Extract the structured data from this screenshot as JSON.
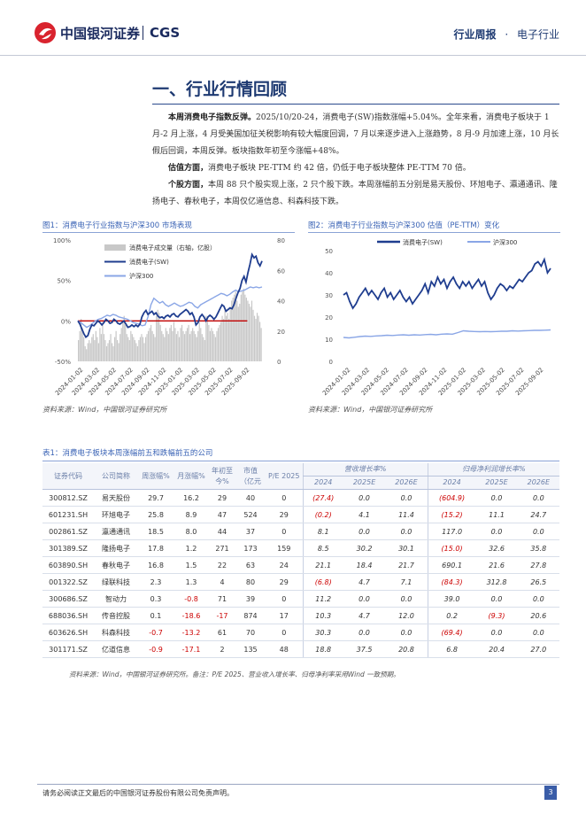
{
  "header": {
    "brand": "中国银河证券",
    "brand_suffix": "CGS",
    "report_type": "行业周报",
    "dot": "·",
    "industry": "电子行业"
  },
  "section": {
    "title": "一、行业行情回顾"
  },
  "paragraphs": [
    {
      "lead": "本周消费电子指数反弹。",
      "text": "2025/10/20-24，消费电子(SW)指数涨幅+5.04%。全年来看，消费电子板块于 1 月-2 月上涨，4 月受美国加征关税影响有较大幅度回调，7 月以来逐步进入上涨趋势，8 月-9 月加速上涨，10 月长假后回调，本周反弹。板块指数年初至今涨幅+48%。"
    },
    {
      "lead": "估值方面，",
      "text": "消费电子板块 PE-TTM 约 42 倍，仍低于电子板块整体 PE-TTM 70 倍。"
    },
    {
      "lead": "个股方面，",
      "text": "本周 88 只个股实现上涨，2 只个股下跌。本周涨幅前五分别是易天股份、环旭电子、瀛通通讯、隆扬电子、春秋电子，本周仅亿道信息、科森科技下跌。"
    }
  ],
  "figure1": {
    "caption": "图1：消费电子行业指数与沪深300 市场表现",
    "source": "资料来源：Wind，中国银河证券研究所"
  },
  "figure2": {
    "caption": "图2：消费电子行业指数与沪深300 估值（PE-TTM）变化",
    "source": "资料来源：Wind，中国银河证券研究所"
  },
  "chart_data": [
    {
      "type": "line",
      "title": "消费电子行业指数与沪深300 市场表现",
      "x_ticks": [
        "2024-01-02",
        "2024-03-02",
        "2024-05-02",
        "2024-07-02",
        "2024-09-02",
        "2024-11-02",
        "2025-01-02",
        "2025-03-02",
        "2025-05-02",
        "2025-07-02",
        "2025-09-02"
      ],
      "ylim_left": [
        -0.5,
        1.0
      ],
      "yticks_left": [
        "100%",
        "50%",
        "0%",
        "-50%"
      ],
      "ylim_right": [
        0,
        80
      ],
      "yticks_right": [
        "80",
        "60",
        "40",
        "20",
        "0"
      ],
      "legend_position": "top-left",
      "series": [
        {
          "name": "消费电子成交量（右轴，亿股）",
          "kind": "bar",
          "axis": "right",
          "color": "#c8c8c8",
          "values": [
            14,
            20,
            28,
            22,
            16,
            10,
            8,
            12,
            14,
            12,
            16,
            18,
            14,
            20,
            16,
            12,
            22,
            18,
            26,
            18,
            14,
            10,
            12,
            14,
            18,
            12,
            10,
            16,
            20,
            14,
            12,
            18,
            22,
            26,
            30,
            24,
            18,
            16,
            14,
            20,
            18,
            16,
            14,
            12,
            10,
            14,
            16,
            18,
            16,
            12,
            16,
            18,
            20,
            22,
            24,
            20,
            18,
            16,
            30,
            34,
            32,
            24,
            20,
            18,
            16,
            22,
            20,
            18,
            22,
            24,
            20,
            26,
            22,
            18,
            20,
            16,
            22,
            24,
            20,
            18,
            20,
            22,
            24,
            18,
            20,
            22,
            20,
            18,
            16,
            20,
            26,
            22,
            18,
            16,
            14,
            30,
            28,
            24,
            20,
            22,
            20,
            18,
            16,
            20,
            22,
            24,
            26,
            30,
            28,
            34,
            30,
            32,
            28,
            36,
            40,
            42,
            44,
            46,
            40,
            36,
            38,
            44,
            46,
            48,
            44,
            42,
            40,
            38,
            36,
            40,
            34,
            30,
            28,
            32,
            30,
            26,
            22
          ]
        },
        {
          "name": "消费电子(SW)",
          "kind": "line",
          "axis": "left",
          "color": "#1f3d8f",
          "values": [
            0.0,
            -0.04,
            -0.1,
            -0.16,
            -0.2,
            -0.18,
            -0.1,
            -0.05,
            -0.06,
            -0.03,
            0.0,
            -0.02,
            -0.05,
            -0.02,
            0.02,
            0.0,
            -0.03,
            -0.02,
            0.02,
            0.0,
            -0.03,
            -0.04,
            -0.02,
            0.0,
            -0.04,
            -0.08,
            -0.07,
            -0.05,
            -0.07,
            -0.05,
            -0.07,
            -0.04,
            0.05,
            0.1,
            0.13,
            0.08,
            0.1,
            0.12,
            0.08,
            0.1,
            0.06,
            0.04,
            0.05,
            0.03,
            0.06,
            0.07,
            0.05,
            0.08,
            0.09,
            0.06,
            0.05,
            0.08,
            0.1,
            0.12,
            0.14,
            0.12,
            0.08,
            0.1,
            0.05,
            -0.05,
            -0.02,
            0.05,
            0.08,
            0.05,
            0.0,
            0.05,
            0.07,
            0.05,
            0.02,
            0.05,
            0.1,
            0.15,
            0.2,
            0.18,
            0.12,
            0.14,
            0.16,
            0.15,
            0.2,
            0.28,
            0.35,
            0.4,
            0.5,
            0.55,
            0.48,
            0.6,
            0.7,
            0.82,
            0.78,
            0.8,
            0.72,
            0.68,
            0.74
          ]
        },
        {
          "name": "沪深300",
          "kind": "line",
          "axis": "left",
          "color": "#8aa6e6",
          "values": [
            0.0,
            -0.02,
            -0.05,
            -0.08,
            -0.06,
            -0.03,
            0.0,
            0.02,
            0.03,
            0.05,
            0.07,
            0.06,
            0.08,
            0.07,
            0.05,
            0.04,
            0.03,
            0.02,
            0.0,
            -0.02,
            -0.03,
            -0.04,
            -0.06,
            -0.05,
            0.05,
            0.2,
            0.28,
            0.25,
            0.22,
            0.24,
            0.2,
            0.18,
            0.2,
            0.22,
            0.2,
            0.18,
            0.19,
            0.21,
            0.23,
            0.22,
            0.18,
            0.16,
            0.2,
            0.22,
            0.24,
            0.26,
            0.28,
            0.3,
            0.32,
            0.34,
            0.33,
            0.31,
            0.33,
            0.36,
            0.38,
            0.36,
            0.37,
            0.38,
            0.4,
            0.42,
            0.41,
            0.42,
            0.41,
            0.42
          ]
        },
        {
          "name": "0%基准线",
          "kind": "hline",
          "axis": "left",
          "color": "#c00000",
          "values": [
            0.0
          ]
        }
      ]
    },
    {
      "type": "line",
      "title": "消费电子行业指数与沪深300 估值（PE-TTM）变化",
      "x_ticks": [
        "2024-01-02",
        "2024-03-02",
        "2024-05-02",
        "2024-07-02",
        "2024-09-02",
        "2024-11-02",
        "2025-01-02",
        "2025-03-02",
        "2025-05-02",
        "2025-07-02",
        "2025-09-02"
      ],
      "ylim": [
        0,
        50
      ],
      "yticks": [
        "50",
        "40",
        "30",
        "20",
        "10",
        "0"
      ],
      "legend_position": "top",
      "series": [
        {
          "name": "消费电子(SW)",
          "color": "#1f3d8f",
          "values": [
            30,
            31,
            27,
            24,
            26,
            29,
            31,
            33,
            30,
            32,
            30,
            28,
            31,
            33,
            29,
            31,
            28,
            30,
            32,
            29,
            27,
            29,
            26,
            28,
            30,
            32,
            35,
            31,
            36,
            34,
            38,
            35,
            37,
            33,
            36,
            38,
            35,
            33,
            36,
            34,
            36,
            33,
            35,
            37,
            34,
            36,
            31,
            28,
            30,
            33,
            35,
            34,
            32,
            34,
            33,
            35,
            37,
            36,
            38,
            40,
            41,
            44,
            45,
            43,
            46,
            40,
            42
          ]
        },
        {
          "name": "沪深300",
          "color": "#8aa6e6",
          "values": [
            10.8,
            10.6,
            10.9,
            11.2,
            11.4,
            11.3,
            11.5,
            11.6,
            11.8,
            11.7,
            11.9,
            12.0,
            11.8,
            12.0,
            11.9,
            12.1,
            12.2,
            12.0,
            12.3,
            12.4,
            12.3,
            13.0,
            13.8,
            13.6,
            13.5,
            13.4,
            13.5,
            13.4,
            13.5,
            13.6,
            13.6,
            13.8,
            13.7,
            13.8,
            13.9,
            14.0,
            14.0,
            14.1,
            14.2
          ]
        }
      ]
    }
  ],
  "table": {
    "caption": "表1：消费电子板块本周涨幅前五和跌幅前五的公司",
    "headers": {
      "code": "证券代码",
      "name": "公司简称",
      "week": "周涨幅%",
      "month": "月涨幅%",
      "ytd": "年初至今%",
      "mcap": "市值（亿元",
      "pe": "P/E 2025",
      "rev_group": "营收增长率%",
      "np_group": "归母净利润增长率%",
      "y2024": "2024",
      "y2025": "2025E",
      "y2026": "2026E"
    },
    "rows": [
      [
        "300812.SZ",
        "易天股份",
        "29.7",
        "16.2",
        "29",
        "40",
        "0",
        "(27.4)",
        "0.0",
        "0.0",
        "(604.9)",
        "0.0",
        "0.0"
      ],
      [
        "601231.SH",
        "环旭电子",
        "25.8",
        "8.9",
        "47",
        "524",
        "29",
        "(0.2)",
        "4.1",
        "11.4",
        "(15.2)",
        "11.1",
        "24.7"
      ],
      [
        "002861.SZ",
        "瀛通通讯",
        "18.5",
        "8.0",
        "44",
        "37",
        "0",
        "8.1",
        "0.0",
        "0.0",
        "117.0",
        "0.0",
        "0.0"
      ],
      [
        "301389.SZ",
        "隆扬电子",
        "17.8",
        "1.2",
        "271",
        "173",
        "159",
        "8.5",
        "30.2",
        "30.1",
        "(15.0)",
        "32.6",
        "35.8"
      ],
      [
        "603890.SH",
        "春秋电子",
        "16.8",
        "1.5",
        "22",
        "63",
        "24",
        "21.1",
        "18.4",
        "21.7",
        "690.1",
        "21.6",
        "27.8"
      ],
      [
        "001322.SZ",
        "绿联科技",
        "2.3",
        "1.3",
        "4",
        "80",
        "29",
        "(6.8)",
        "4.7",
        "7.1",
        "(84.3)",
        "312.8",
        "26.5"
      ],
      [
        "300686.SZ",
        "智动力",
        "0.3",
        "-0.8",
        "71",
        "39",
        "0",
        "11.2",
        "0.0",
        "0.0",
        "39.0",
        "0.0",
        "0.0"
      ],
      [
        "688036.SH",
        "传音控股",
        "0.1",
        "-18.6",
        "-17",
        "874",
        "17",
        "10.3",
        "4.7",
        "12.0",
        "0.2",
        "(9.3)",
        "20.6"
      ],
      [
        "603626.SH",
        "科森科技",
        "-0.7",
        "-13.2",
        "61",
        "70",
        "0",
        "30.3",
        "0.0",
        "0.0",
        "(69.4)",
        "0.0",
        "0.0"
      ],
      [
        "301171.SZ",
        "亿道信息",
        "-0.9",
        "-17.1",
        "2",
        "135",
        "48",
        "18.8",
        "37.5",
        "20.8",
        "6.8",
        "20.4",
        "27.0"
      ]
    ],
    "source": "资料来源：Wind，中国银河证券研究所。备注：P/E 2025、营业收入增长率、归母净利率采用Wind 一致预期。"
  },
  "footer": {
    "disclaimer": "请务必阅读正文最后的中国银河证券股份有限公司免责声明。",
    "page": "3"
  },
  "colors": {
    "brand_red": "#d9232e",
    "brand_navy": "#1a2a5e",
    "accent_blue": "#3a63b5",
    "negative_red": "#cc0000"
  }
}
